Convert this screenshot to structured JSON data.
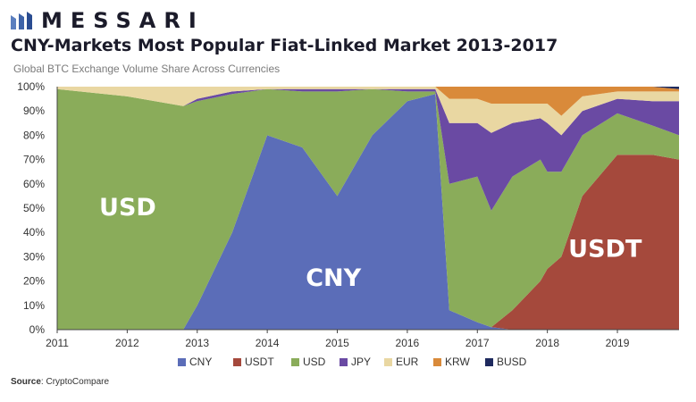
{
  "brand": {
    "name": "MESSARI",
    "logo_icon": "messari-logo-icon",
    "color": "#1b1b2a"
  },
  "title": "CNY-Markets Most Popular Fiat-Linked Market 2013-2017",
  "subtitle": "Global BTC Exchange Volume Share Across Currencies",
  "source": {
    "label": "Source",
    "value": "CryptoCompare"
  },
  "chart_data": {
    "type": "area",
    "stacked": true,
    "percent": true,
    "title": "CNY-Markets Most Popular Fiat-Linked Market 2013-2017",
    "subtitle": "Global BTC Exchange Volume Share Across Currencies",
    "xlabel": "",
    "ylabel": "",
    "xlim": [
      2011.0,
      2019.88
    ],
    "ylim": [
      0,
      100
    ],
    "x_ticks": [
      2011,
      2012,
      2013,
      2014,
      2015,
      2016,
      2017,
      2018,
      2019
    ],
    "y_ticks": [
      "0%",
      "10%",
      "20%",
      "30%",
      "40%",
      "50%",
      "60%",
      "70%",
      "80%",
      "90%",
      "100%"
    ],
    "grid": false,
    "legend_position": "bottom",
    "x": [
      2011.0,
      2012.0,
      2012.8,
      2013.0,
      2013.5,
      2014.0,
      2014.5,
      2015.0,
      2015.5,
      2016.0,
      2016.4,
      2016.6,
      2017.0,
      2017.2,
      2017.5,
      2017.9,
      2018.0,
      2018.2,
      2018.5,
      2019.0,
      2019.5,
      2019.88
    ],
    "series": [
      {
        "name": "CNY",
        "color": "#5b6db8",
        "values": [
          0,
          0,
          0,
          10,
          40,
          80,
          75,
          55,
          80,
          94,
          97,
          8,
          3,
          1,
          0,
          0,
          0,
          0,
          0,
          0,
          0,
          0
        ]
      },
      {
        "name": "USDT",
        "color": "#a5493c",
        "values": [
          0,
          0,
          0,
          0,
          0,
          0,
          0,
          0,
          0,
          0,
          0,
          0,
          0,
          0,
          8,
          20,
          25,
          30,
          55,
          72,
          72,
          70
        ]
      },
      {
        "name": "USD",
        "color": "#8aac5a",
        "values": [
          99,
          96,
          92,
          84,
          57,
          19,
          23,
          43,
          19,
          4,
          1,
          52,
          60,
          48,
          55,
          50,
          40,
          35,
          25,
          17,
          12,
          10
        ]
      },
      {
        "name": "JPY",
        "color": "#6a4aa3",
        "values": [
          0,
          0,
          0,
          1,
          1,
          0,
          1,
          1,
          0,
          1,
          1,
          25,
          22,
          32,
          22,
          17,
          20,
          15,
          10,
          6,
          10,
          14
        ]
      },
      {
        "name": "EUR",
        "color": "#e9d7a2",
        "values": [
          1,
          4,
          8,
          5,
          2,
          1,
          1,
          1,
          1,
          1,
          1,
          10,
          10,
          12,
          8,
          6,
          8,
          8,
          6,
          3,
          4,
          4
        ]
      },
      {
        "name": "KRW",
        "color": "#d98a3a",
        "values": [
          0,
          0,
          0,
          0,
          0,
          0,
          0,
          0,
          0,
          0,
          0,
          5,
          5,
          7,
          7,
          7,
          7,
          12,
          4,
          2,
          2,
          1
        ]
      },
      {
        "name": "BUSD",
        "color": "#1e2a5e",
        "values": [
          0,
          0,
          0,
          0,
          0,
          0,
          0,
          0,
          0,
          0,
          0,
          0,
          0,
          0,
          0,
          0,
          0,
          0,
          0,
          0,
          0,
          1
        ]
      }
    ],
    "annotations": [
      {
        "text": "USD",
        "x": 2011.6,
        "y": 47,
        "color": "#ffffff"
      },
      {
        "text": "CNY",
        "x": 2014.55,
        "y": 18,
        "color": "#ffffff"
      },
      {
        "text": "USDT",
        "x": 2018.3,
        "y": 30,
        "color": "#ffffff"
      }
    ]
  }
}
